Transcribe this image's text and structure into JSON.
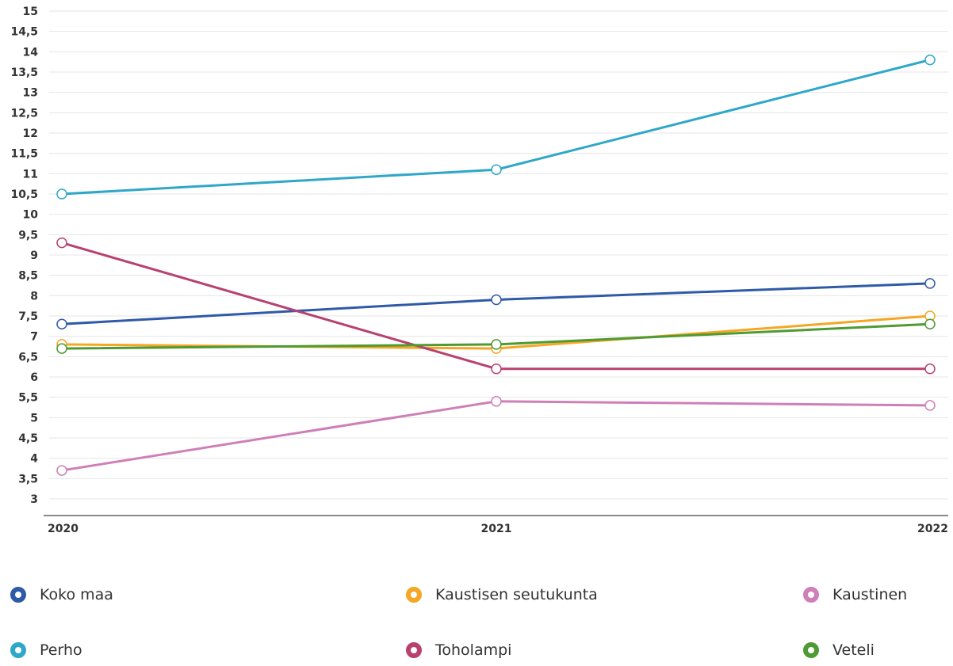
{
  "chart_data": {
    "type": "line",
    "title": "",
    "xlabel": "",
    "ylabel": "",
    "x": [
      "2020",
      "2021",
      "2022"
    ],
    "ylim": [
      3,
      15
    ],
    "yticks": [
      "15",
      "14,5",
      "14",
      "13,5",
      "13",
      "12,5",
      "12",
      "11,5",
      "11",
      "10,5",
      "10",
      "9,5",
      "9",
      "8,5",
      "8",
      "7,5",
      "7",
      "6,5",
      "6",
      "5,5",
      "5",
      "4,5",
      "4",
      "3,5",
      "3"
    ],
    "grid": true,
    "legend_position": "bottom",
    "series": [
      {
        "name": "Koko maa",
        "color": "#2f5aa8",
        "values": [
          7.3,
          7.9,
          8.3
        ]
      },
      {
        "name": "Kaustisen seutukunta",
        "color": "#f5a623",
        "values": [
          6.8,
          6.7,
          7.5
        ]
      },
      {
        "name": "Kaustinen",
        "color": "#cf7fb8",
        "values": [
          3.7,
          5.4,
          5.3
        ]
      },
      {
        "name": "Perho",
        "color": "#2ea7c9",
        "values": [
          10.5,
          11.1,
          13.8
        ]
      },
      {
        "name": "Toholampi",
        "color": "#b8426f",
        "values": [
          9.3,
          6.2,
          6.2
        ]
      },
      {
        "name": "Veteli",
        "color": "#4f9a32",
        "values": [
          6.7,
          6.8,
          7.3
        ]
      }
    ]
  }
}
